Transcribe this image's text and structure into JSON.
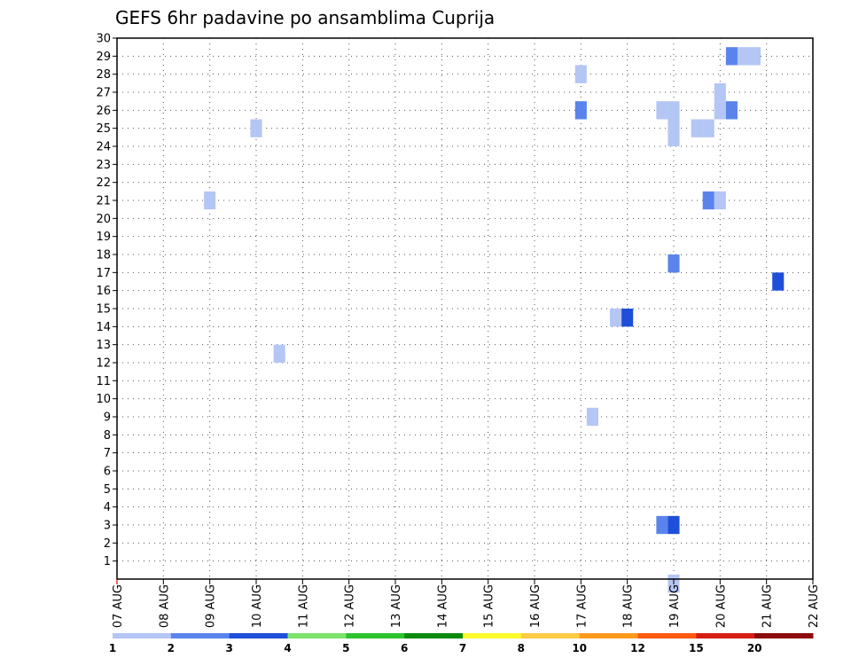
{
  "chart_data": {
    "type": "heatmap",
    "title": "GEFS 6hr padavine po ansamblima Cuprija",
    "xlabel": "",
    "ylabel": "",
    "x_ticks": [
      "07 AUG",
      "08 AUG",
      "09 AUG",
      "10 AUG",
      "11 AUG",
      "12 AUG",
      "13 AUG",
      "14 AUG",
      "15 AUG",
      "16 AUG",
      "17 AUG",
      "18 AUG",
      "19 AUG",
      "20 AUG",
      "21 AUG",
      "22 AUG"
    ],
    "x_range_days": [
      0,
      15
    ],
    "y_ticks": [
      1,
      2,
      3,
      4,
      5,
      6,
      7,
      8,
      9,
      10,
      11,
      12,
      13,
      14,
      15,
      16,
      17,
      18,
      19,
      20,
      21,
      22,
      23,
      24,
      25,
      26,
      27,
      28,
      29,
      30
    ],
    "y_range": [
      0,
      30
    ],
    "grid": true,
    "cells": [
      {
        "x": 2.0,
        "member": 21,
        "level": 1
      },
      {
        "x": 3.0,
        "member": 25,
        "level": 1
      },
      {
        "x": 3.5,
        "member": 12.5,
        "level": 1
      },
      {
        "x": 10.0,
        "member": 28,
        "level": 1
      },
      {
        "x": 10.0,
        "member": 26,
        "level": 2
      },
      {
        "x": 10.25,
        "member": 9,
        "level": 1
      },
      {
        "x": 10.75,
        "member": 14.5,
        "level": 1
      },
      {
        "x": 11.0,
        "member": 14.5,
        "level": 3
      },
      {
        "x": 11.75,
        "member": 26,
        "level": 1
      },
      {
        "x": 12.0,
        "member": 26,
        "level": 1
      },
      {
        "x": 12.0,
        "member": 25,
        "level": 1
      },
      {
        "x": 12.0,
        "member": 24.5,
        "level": 1
      },
      {
        "x": 12.0,
        "member": 17.5,
        "level": 2
      },
      {
        "x": 11.75,
        "member": 3,
        "level": 2
      },
      {
        "x": 12.0,
        "member": 3,
        "level": 3
      },
      {
        "x": 12.0,
        "member": -0.25,
        "level": 1
      },
      {
        "x": 12.5,
        "member": 25,
        "level": 1
      },
      {
        "x": 12.75,
        "member": 25,
        "level": 1
      },
      {
        "x": 12.75,
        "member": 21,
        "level": 2
      },
      {
        "x": 13.0,
        "member": 21,
        "level": 1
      },
      {
        "x": 13.0,
        "member": 27,
        "level": 1
      },
      {
        "x": 13.0,
        "member": 26,
        "level": 1
      },
      {
        "x": 13.25,
        "member": 26,
        "level": 2
      },
      {
        "x": 13.25,
        "member": 29,
        "level": 2
      },
      {
        "x": 13.5,
        "member": 29,
        "level": 1
      },
      {
        "x": 13.75,
        "member": 29,
        "level": 1
      },
      {
        "x": 14.25,
        "member": 16.5,
        "level": 3
      }
    ],
    "colorbar": {
      "labels": [
        "1",
        "2",
        "3",
        "4",
        "5",
        "6",
        "7",
        "8",
        "10",
        "12",
        "15",
        "20"
      ],
      "colors": [
        "#b4c6f4",
        "#5a84ec",
        "#1f4fd9",
        "#7de36b",
        "#2cc32e",
        "#0a8a0e",
        "#fffb2b",
        "#ffcb45",
        "#ff9a1d",
        "#ff5a10",
        "#d61e12",
        "#8c0a0a"
      ]
    }
  }
}
